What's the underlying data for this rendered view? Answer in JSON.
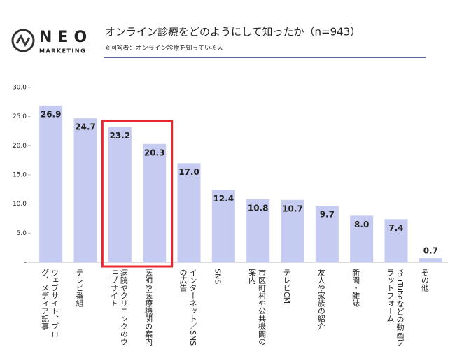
{
  "logo": {
    "name": "NEO",
    "sub": "MARKETING"
  },
  "chart_data": {
    "type": "bar",
    "title": "オンライン診療をどのようにして知ったか（n=943）",
    "subtitle": "※回答者：オンライン診療を知っている人",
    "categories": [
      "ウェブサイト、ブログ、メディア記事",
      "テレビ番組",
      "病院やクリニックのウェブサイト",
      "医師や医療機関の案内",
      "インターネット／SNSの広告",
      "SNS",
      "市区町村や公共機関の案内",
      "テレビCM",
      "友人や家族の紹介",
      "新聞・雑誌",
      "YouTubeなどの動画プラットフォーム",
      "その他"
    ],
    "values": [
      26.9,
      24.7,
      23.2,
      20.3,
      17.0,
      12.4,
      10.8,
      10.7,
      9.7,
      8.0,
      7.4,
      0.7
    ],
    "value_labels": [
      "26.9",
      "24.7",
      "23.2",
      "20.3",
      "17.0",
      "12.4",
      "10.8",
      "10.7",
      "9.7",
      "8.0",
      "7.4",
      "0.7"
    ],
    "color": "#c6ccf1",
    "ylim": [
      0,
      30
    ],
    "yticks": [
      {
        "value": 0,
        "label": "-"
      },
      {
        "value": 5,
        "label": "5.0"
      },
      {
        "value": 10,
        "label": "10.0"
      },
      {
        "value": 15,
        "label": "15.0"
      },
      {
        "value": 20,
        "label": "20.0"
      },
      {
        "value": 25,
        "label": "25.0"
      },
      {
        "value": 30,
        "label": "30.0"
      }
    ]
  }
}
